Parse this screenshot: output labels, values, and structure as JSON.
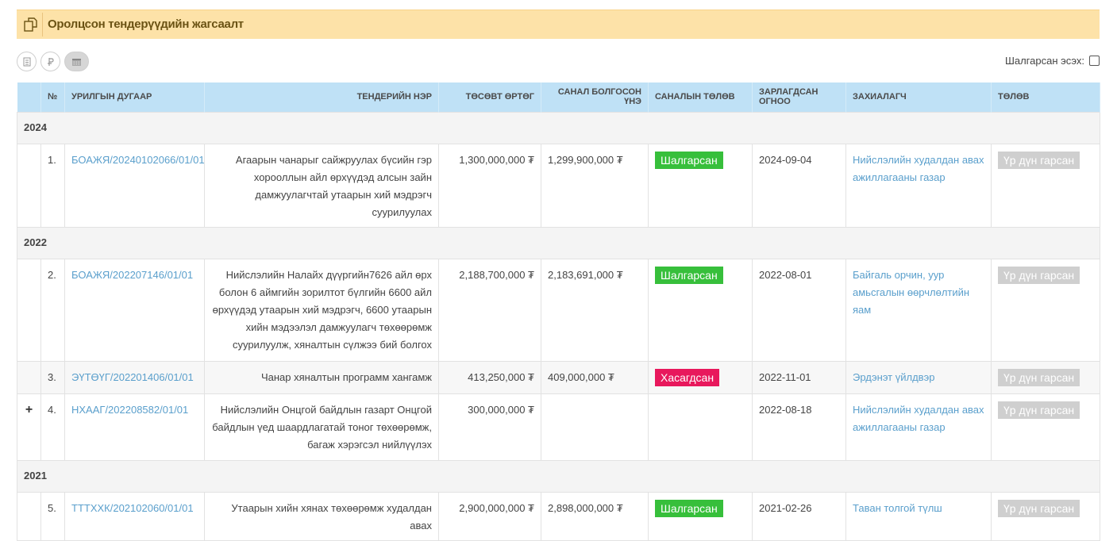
{
  "panel": {
    "title": "Оролцсон тендерүүдийн жагсаалт",
    "icon": "copy-icon"
  },
  "toolbar": {
    "buttons": [
      "calculator-icon",
      "currency-icon",
      "calendar-icon"
    ]
  },
  "filter": {
    "label": "Шалгарсан эсэх:"
  },
  "columns": {
    "no": "№",
    "code": "Урилгын дугаар",
    "name": "Тендерийн нэр",
    "budget": "Төсөвт өртөг",
    "offer": "Санал болгосон үнэ",
    "offer_status": "Саналын төлөв",
    "date": "Зарлагдсан огноо",
    "customer": "Захиалагч",
    "status": "Төлөв"
  },
  "years": [
    "2024",
    "2022",
    "2021"
  ],
  "rows": [
    {
      "no": "1.",
      "code": "БОАЖЯ/20240102066/01/01",
      "name": "Агаарын чанарыг сайжруулах бүсийн гэр хорооллын айл өрхүүдэд алсын зайн дамжуулагчтай утаарын хий мэдрэгч суурилуулах",
      "budget": "1,300,000,000 ₮",
      "offer": "1,299,900,000 ₮",
      "offer_status": "Шалгарсан",
      "date": "2024-09-04",
      "customer": "Нийслэлийн худалдан авах ажиллагааны газар",
      "status": "Үр дүн гарсан"
    },
    {
      "no": "2.",
      "code": "БОАЖЯ/202207146/01/01",
      "name": "Нийслэлийн Налайх дүүргийн7626 айл өрх болон 6 аймгийн зорилтот бүлгийн 6600 айл өрхүүдэд утаарын хий мэдрэгч, 6600 утаарын хийн мэдээлэл дамжуулагч төхөөрөмж суурилуулж, хяналтын сүлжээ бий болгох",
      "budget": "2,188,700,000 ₮",
      "offer": "2,183,691,000 ₮",
      "offer_status": "Шалгарсан",
      "date": "2022-08-01",
      "customer": "Байгаль орчин, уур амьсгалын өөрчлөлтийн яам",
      "status": "Үр дүн гарсан"
    },
    {
      "no": "3.",
      "code": "ЭҮТӨҮГ/202201406/01/01",
      "name": "Чанар хяналтын программ хангамж",
      "budget": "413,250,000 ₮",
      "offer": "409,000,000 ₮",
      "offer_status": "Хасагдсан",
      "date": "2022-11-01",
      "customer": "Эрдэнэт үйлдвэр",
      "status": "Үр дүн гарсан"
    },
    {
      "no": "4.",
      "code": "НХААГ/202208582/01/01",
      "expand": "+",
      "name": "Нийслэлийн Онцгой байдлын газарт Онцгой байдлын үед шаардлагатай тоног төхөөрөмж, багаж хэрэгсэл нийлүүлэх",
      "budget": "300,000,000 ₮",
      "offer": "",
      "offer_status": "",
      "date": "2022-08-18",
      "customer": "Нийслэлийн худалдан авах ажиллагааны газар",
      "status": "Үр дүн гарсан"
    },
    {
      "no": "5.",
      "code": "ТТТХХК/202102060/01/01",
      "name": "Утаарын хийн хянах төхөөрөмж худалдан авах",
      "budget": "2,900,000,000 ₮",
      "offer": "2,898,000,000 ₮",
      "offer_status": "Шалгарсан",
      "date": "2021-02-26",
      "customer": "Таван толгой түлш",
      "status": "Үр дүн гарсан"
    }
  ],
  "colors": {
    "header_bg": "#fde2a8",
    "table_head": "#bfe1f6",
    "success": "#37bf3b",
    "rejected": "#e8185c",
    "link": "#5a9fcc"
  }
}
